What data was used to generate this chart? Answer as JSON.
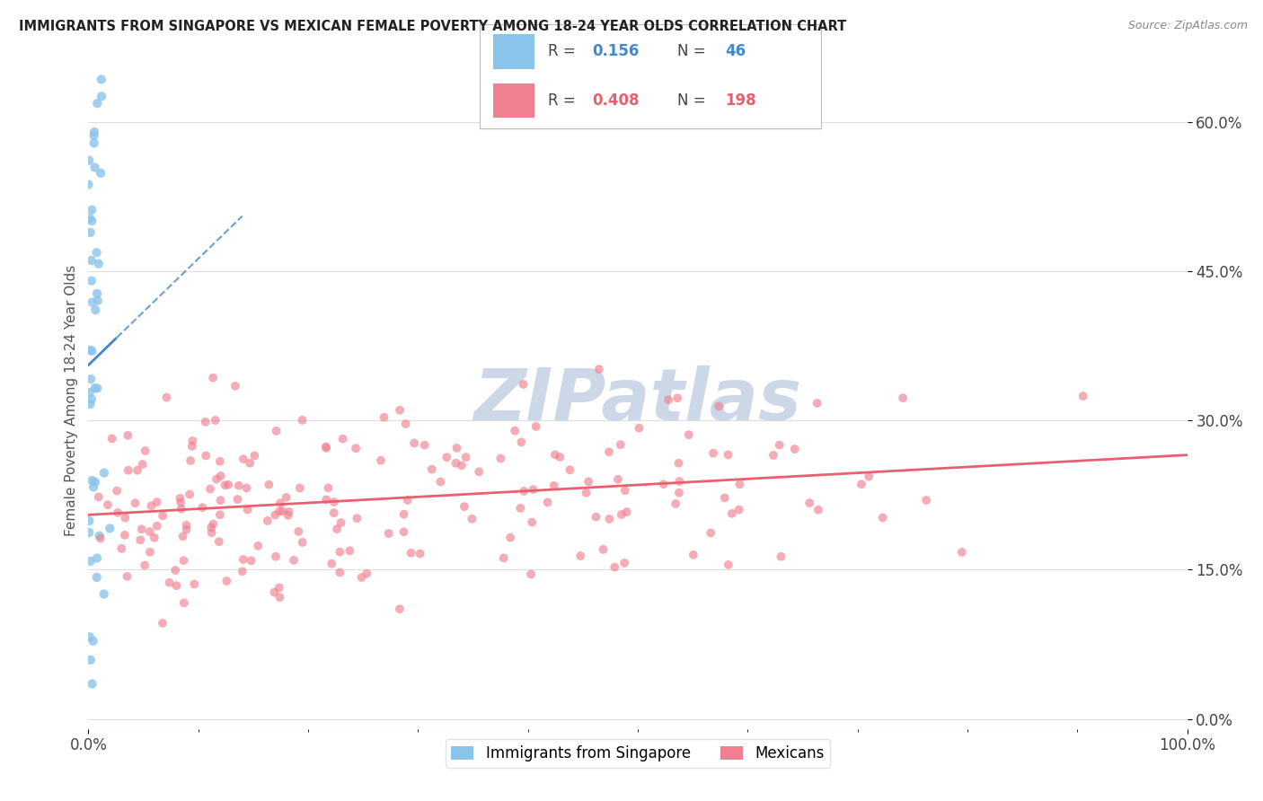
{
  "title": "IMMIGRANTS FROM SINGAPORE VS MEXICAN FEMALE POVERTY AMONG 18-24 YEAR OLDS CORRELATION CHART",
  "source": "Source: ZipAtlas.com",
  "ylabel": "Female Poverty Among 18-24 Year Olds",
  "xlim": [
    0.0,
    1.0
  ],
  "ylim": [
    -0.01,
    0.65
  ],
  "yticks": [
    0.0,
    0.15,
    0.3,
    0.45,
    0.6
  ],
  "ytick_labels": [
    "0.0%",
    "15.0%",
    "30.0%",
    "45.0%",
    "60.0%"
  ],
  "xticks": [
    0.0,
    1.0
  ],
  "xtick_labels": [
    "0.0%",
    "100.0%"
  ],
  "color_singapore": "#8bc4ea",
  "color_mexican": "#f08090",
  "color_line_singapore": "#4488cc",
  "color_line_mexican": "#e86070",
  "watermark": "ZIPatlas",
  "watermark_color": "#ccd8e8",
  "background_color": "#ffffff",
  "singapore_n": 46,
  "mexican_n": 198
}
